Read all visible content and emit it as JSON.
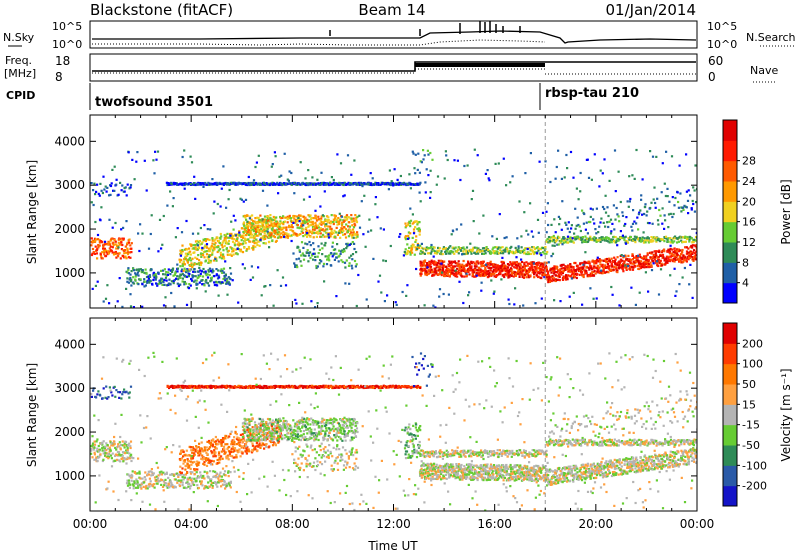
{
  "header": {
    "title_left": "Blackstone (fitACF)",
    "title_center": "Beam 14",
    "title_right": "01/Jan/2014"
  },
  "summary": {
    "n_sky_label": "N.Sky",
    "n_search_label": "N.Search",
    "n_ticks_left": [
      "10^5",
      "10^0"
    ],
    "n_ticks_right": [
      "10^5",
      "10^0"
    ],
    "freq_label_1": "Freq.",
    "freq_label_2": "[MHz]",
    "freq_ticks": [
      "18",
      "8"
    ],
    "nave_label": "Nave",
    "nave_ticks": [
      "60",
      "0"
    ],
    "cpid_label": "CPID",
    "cpid_segments": [
      {
        "name": "twofsound 3501",
        "start_hour": 0,
        "end_hour": 18
      },
      {
        "name": "rbsp-tau 210",
        "start_hour": 18,
        "end_hour": 24
      }
    ]
  },
  "chart_data": [
    {
      "type": "heatmap",
      "name": "power",
      "ylabel": "Slant Range [km]",
      "xlabel": "",
      "ylim": [
        200,
        4600
      ],
      "yticks": [
        "1000",
        "2000",
        "3000",
        "4000"
      ],
      "xlim": [
        0,
        24
      ],
      "colorbar": {
        "label": "Power [dB]",
        "ticks": [
          "4",
          "8",
          "12",
          "16",
          "20",
          "24",
          "28"
        ],
        "colors": [
          "#0000ff",
          "#1f5fa6",
          "#2e8b57",
          "#66cc33",
          "#f0d020",
          "#ff9900",
          "#ff5a00",
          "#ff1a00",
          "#e00000"
        ]
      }
    },
    {
      "type": "heatmap",
      "name": "velocity",
      "ylabel": "Slant Range [km]",
      "xlabel": "Time UT",
      "ylim": [
        200,
        4600
      ],
      "yticks": [
        "1000",
        "2000",
        "3000",
        "4000"
      ],
      "xlim": [
        0,
        24
      ],
      "xticks": [
        "00:00",
        "04:00",
        "08:00",
        "12:00",
        "16:00",
        "20:00",
        "00:00"
      ],
      "colorbar": {
        "label": "Velocity [m s⁻¹]",
        "ticks": [
          "200",
          "100",
          "50",
          "15",
          "-15",
          "-50",
          "-100",
          "-200"
        ],
        "colors": [
          "#1414c8",
          "#2a5aa8",
          "#2e8b57",
          "#66cc33",
          "#b4b4b4",
          "#ffa040",
          "#ff7800",
          "#ff3c00",
          "#e00000"
        ]
      }
    }
  ]
}
